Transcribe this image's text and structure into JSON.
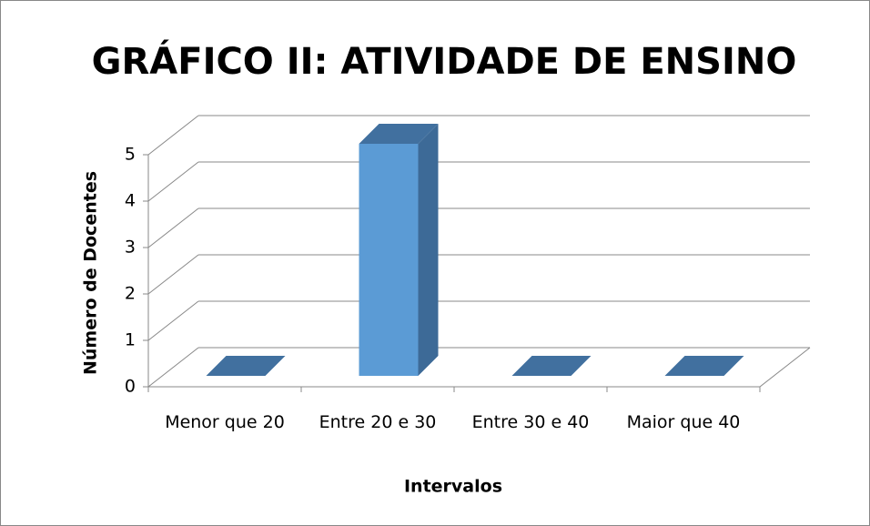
{
  "chart_data": {
    "type": "bar3d",
    "title": "GRÁFICO II: ATIVIDADE DE ENSINO",
    "x_label": "Intervalos",
    "y_label": "Número de Docentes",
    "categories": [
      "Menor que 20",
      "Entre 20 e 30",
      "Entre 30 e 40",
      "Maior que 40"
    ],
    "values": [
      0,
      5,
      0,
      0
    ],
    "color": "#5b9bd5",
    "ylim": [
      0,
      5
    ],
    "yticks": [
      0,
      1,
      2,
      3,
      4,
      5
    ],
    "grid": true
  }
}
